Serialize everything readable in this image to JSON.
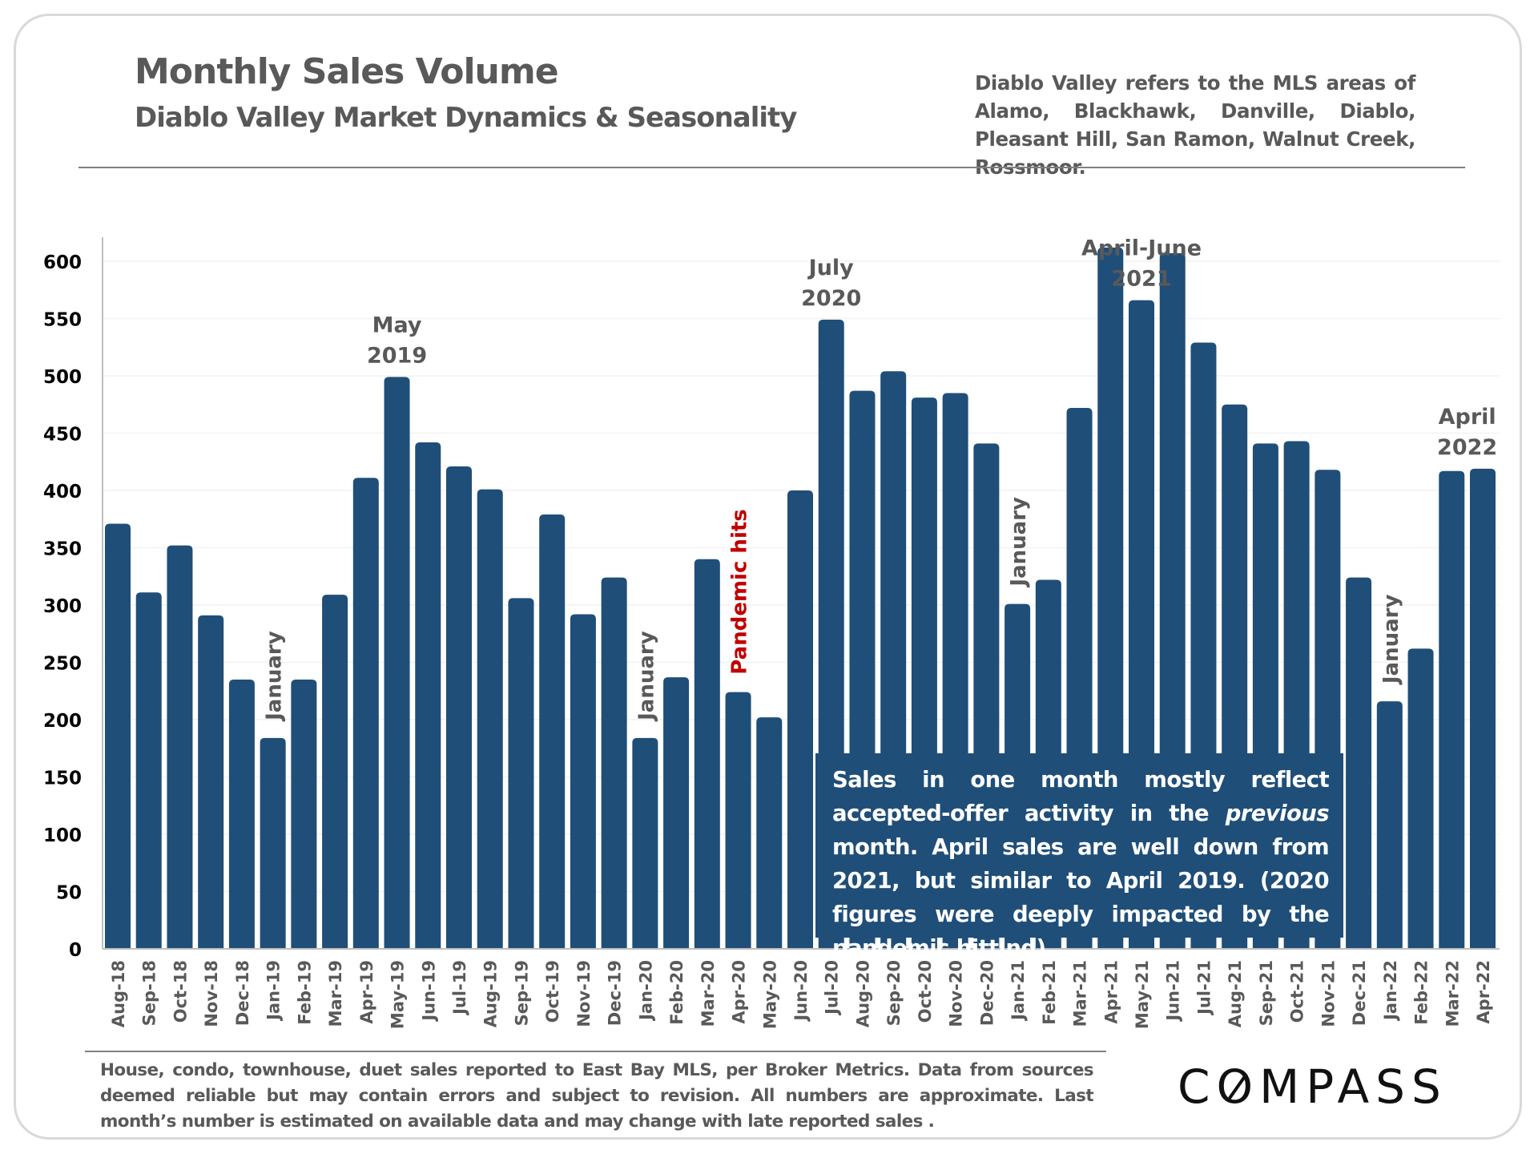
{
  "header": {
    "title": "Monthly Sales Volume",
    "subtitle": "Diablo Valley Market Dynamics & Seasonality",
    "note": "Diablo Valley refers to the MLS areas of Alamo, Blackhawk, Danville, Diablo, Pleasant Hill, San Ramon, Walnut Creek, Rossmoor."
  },
  "callout": {
    "text_before": "Sales in one month mostly reflect accepted-offer activity in the ",
    "text_italic": "previous",
    "text_after": " month. April sales are well down from 2021, but similar to April 2019. (2020 figures were deeply impacted by the pandemic hitting)."
  },
  "footer": {
    "text": "House, condo, townhouse, duet sales reported to East Bay MLS, per Broker Metrics. Data from sources deemed reliable but may contain errors and subject to revision. All numbers are approximate. Last month’s number is estimated on available data and may change with late reported sales ."
  },
  "brand": {
    "logo_text": "COMPASS"
  },
  "colors": {
    "bar": "#1f4e79",
    "annotation": "#595959",
    "pandemic": "#c00000",
    "axis_text": "#000000",
    "tick_label": "#595959"
  },
  "chart_data": {
    "type": "bar",
    "title": "Monthly Sales Volume",
    "xlabel": "",
    "ylabel": "",
    "ylim": [
      0,
      600
    ],
    "yticks": [
      0,
      50,
      100,
      150,
      200,
      250,
      300,
      350,
      400,
      450,
      500,
      550,
      600
    ],
    "grid": true,
    "legend": "none",
    "categories": [
      "Aug-18",
      "Sep-18",
      "Oct-18",
      "Nov-18",
      "Dec-18",
      "Jan-19",
      "Feb-19",
      "Mar-19",
      "Apr-19",
      "May-19",
      "Jun-19",
      "Jul-19",
      "Aug-19",
      "Sep-19",
      "Oct-19",
      "Nov-19",
      "Dec-19",
      "Jan-20",
      "Feb-20",
      "Mar-20",
      "Apr-20",
      "May-20",
      "Jun-20",
      "Jul-20",
      "Aug-20",
      "Sep-20",
      "Oct-20",
      "Nov-20",
      "Dec-20",
      "Jan-21",
      "Feb-21",
      "Mar-21",
      "Apr-21",
      "May-21",
      "Jun-21",
      "Jul-21",
      "Aug-21",
      "Sep-21",
      "Oct-21",
      "Nov-21",
      "Dec-21",
      "Jan-22",
      "Feb-22",
      "Mar-22",
      "Apr-22"
    ],
    "values": [
      371,
      311,
      352,
      291,
      235,
      184,
      235,
      309,
      411,
      499,
      442,
      421,
      401,
      306,
      379,
      292,
      324,
      184,
      237,
      340,
      224,
      202,
      400,
      549,
      487,
      504,
      481,
      485,
      441,
      301,
      322,
      472,
      612,
      566,
      607,
      529,
      475,
      441,
      443,
      418,
      324,
      216,
      262,
      417,
      419
    ],
    "annotations": [
      {
        "text": [
          "May",
          "2019"
        ],
        "category": "May-19",
        "orientation": "horizontal",
        "color_key": "annotation"
      },
      {
        "text": [
          "July",
          "2020"
        ],
        "category": "Jul-20",
        "orientation": "horizontal",
        "color_key": "annotation"
      },
      {
        "text": [
          "April-June",
          "2021"
        ],
        "category": "May-21",
        "orientation": "horizontal",
        "color_key": "annotation"
      },
      {
        "text": [
          "April",
          "2022"
        ],
        "category": "Apr-22",
        "offset": -0.5,
        "orientation": "horizontal",
        "color_key": "annotation"
      },
      {
        "text": [
          "January"
        ],
        "category": "Jan-19",
        "orientation": "vertical",
        "color_key": "annotation"
      },
      {
        "text": [
          "January"
        ],
        "category": "Jan-20",
        "orientation": "vertical",
        "color_key": "annotation"
      },
      {
        "text": [
          "January"
        ],
        "category": "Jan-21",
        "orientation": "vertical",
        "color_key": "annotation"
      },
      {
        "text": [
          "January"
        ],
        "category": "Jan-22",
        "orientation": "vertical",
        "color_key": "annotation"
      },
      {
        "text": [
          "Pandemic hits"
        ],
        "category": "Apr-20",
        "orientation": "vertical",
        "color_key": "pandemic"
      }
    ]
  }
}
